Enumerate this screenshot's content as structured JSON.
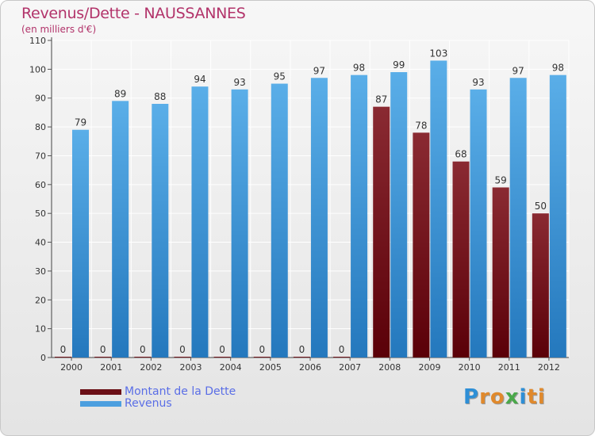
{
  "header": {
    "title": "Revenus/Dette - NAUSSANNES",
    "subtitle": "(en milliers d'€)"
  },
  "legend": [
    {
      "label": "Montant de la Dette",
      "color": "#6b0f16"
    },
    {
      "label": "Revenus",
      "color": "#4c9fdf"
    }
  ],
  "logo": {
    "text": "Proxiti",
    "colors": [
      "#2e8fd6",
      "#e0892c",
      "#e0892c",
      "#4aa84a",
      "#2e8fd6",
      "#e0892c",
      "#e0892c"
    ]
  },
  "chart_data": {
    "type": "bar",
    "categories": [
      "2000",
      "2001",
      "2002",
      "2003",
      "2004",
      "2005",
      "2006",
      "2007",
      "2008",
      "2009",
      "2010",
      "2011",
      "2012"
    ],
    "series": [
      {
        "name": "Montant de la Dette",
        "color": "#6b0f16",
        "values": [
          0,
          0,
          0,
          0,
          0,
          0,
          0,
          0,
          87,
          78,
          68,
          59,
          50
        ]
      },
      {
        "name": "Revenus",
        "color": "#4c9fdf",
        "values": [
          79,
          89,
          88,
          94,
          93,
          95,
          97,
          98,
          99,
          103,
          93,
          97,
          98
        ]
      }
    ],
    "title": "Revenus/Dette - NAUSSANNES",
    "ylabel": "(en milliers d'€)",
    "ylim": [
      0,
      110
    ],
    "yticks": [
      0,
      10,
      20,
      30,
      40,
      50,
      60,
      70,
      80,
      90,
      100,
      110
    ],
    "grid": true,
    "legend_position": "bottom-left",
    "data_labels": true
  }
}
